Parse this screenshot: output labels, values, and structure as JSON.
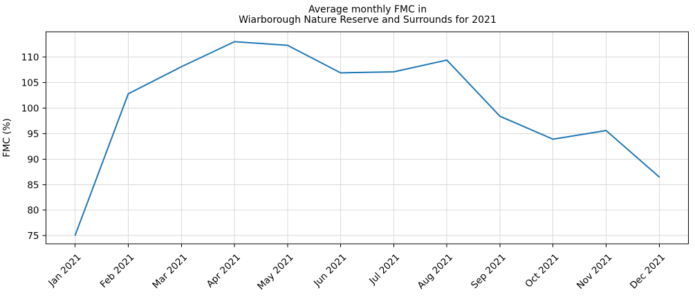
{
  "window": {
    "background": "#ffffff"
  },
  "chart_data": {
    "type": "line",
    "title": "Average monthly FMC in\nWiarborough Nature Reserve and Surrounds for 2021",
    "title_lines": [
      "Average monthly FMC in",
      "Wiarborough Nature Reserve and Surrounds for 2021"
    ],
    "xlabel": "",
    "ylabel": "FMC (%)",
    "categories": [
      "Jan 2021",
      "Feb 2021",
      "Mar 2021",
      "Apr 2021",
      "May 2021",
      "Jun 2021",
      "Jul 2021",
      "Aug 2021",
      "Sep 2021",
      "Oct 2021",
      "Nov 2021",
      "Dec 2021"
    ],
    "series": [
      {
        "name": "Average monthly FMC",
        "color": "#1f77b4",
        "values": [
          75.1,
          102.8,
          108.1,
          113.0,
          112.3,
          106.9,
          107.1,
          109.4,
          98.4,
          93.9,
          95.6,
          86.5
        ]
      }
    ],
    "yticks": [
      75,
      80,
      85,
      90,
      95,
      100,
      105,
      110
    ],
    "ylim": [
      73.4,
      114.95
    ],
    "x_margin": 0.55,
    "x_tick_rotation_deg": 45,
    "grid": true,
    "grid_color": "#d9d9d9",
    "axis_color": "#000000",
    "text_color": "#000000",
    "line_width": 2,
    "legend_position": "none"
  }
}
